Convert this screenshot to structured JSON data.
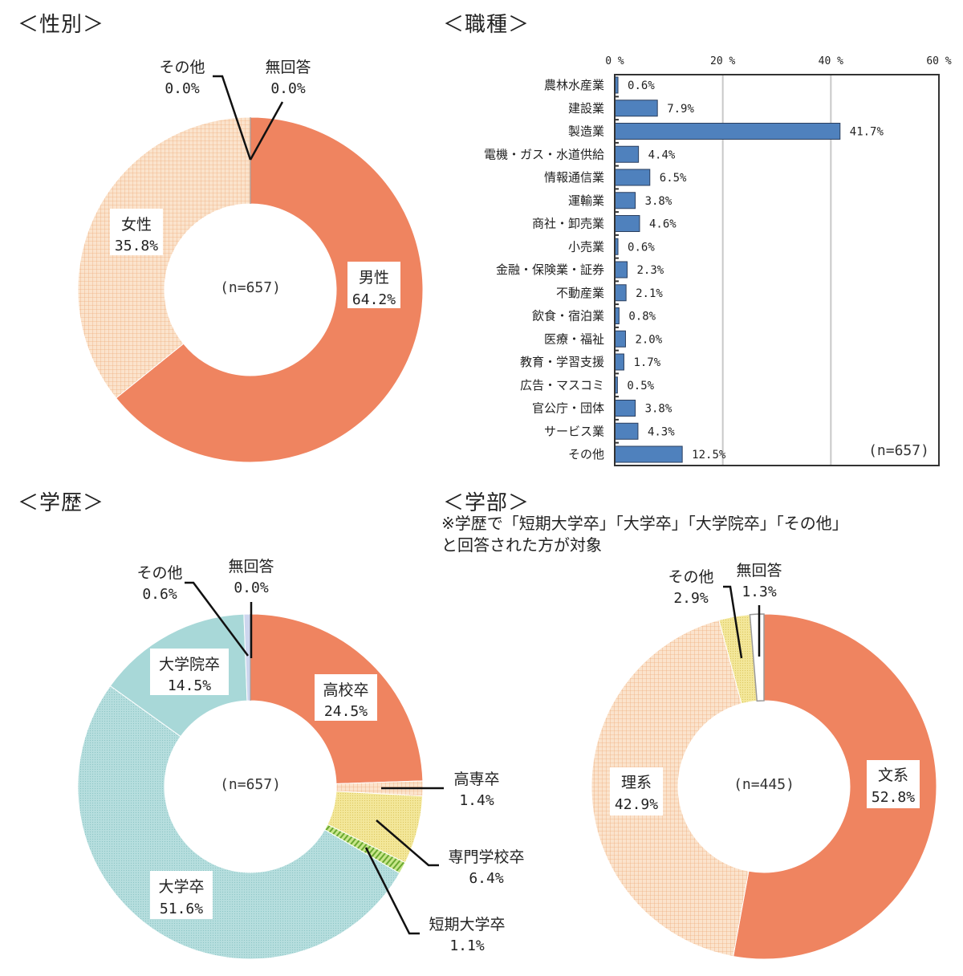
{
  "sections": {
    "gender": {
      "title": "＜性別＞"
    },
    "occupation": {
      "title": "＜職種＞"
    },
    "education": {
      "title": "＜学歴＞"
    },
    "faculty": {
      "title": "＜学部＞",
      "note_line1": "※学歴で「短期大学卒」「大学卒」「大学院卒」「その他」",
      "note_line2": "と回答された方が対象"
    }
  },
  "colors": {
    "orange": "#ef8460",
    "peach": "#f7caa0",
    "teal": "#a8d8d8",
    "yellow": "#efe08a",
    "green": "#9ccc50",
    "lavender": "#cdd6ee",
    "bar_blue": "#4f81bd",
    "grid": "#c8c8c8"
  },
  "chart_data": [
    {
      "id": "gender",
      "type": "pie",
      "title": "＜性別＞",
      "center_label": "(n=657)",
      "series": [
        {
          "name": "男性",
          "value": 64.2,
          "label": "64.2%",
          "color": "#ef8460"
        },
        {
          "name": "女性",
          "value": 35.8,
          "label": "35.8%",
          "color": "#f7caa0"
        },
        {
          "name": "その他",
          "value": 0.0,
          "label": "0.0%",
          "color": "#cdd6ee"
        },
        {
          "name": "無回答",
          "value": 0.0,
          "label": "0.0%",
          "color": "#ffffff"
        }
      ]
    },
    {
      "id": "occupation",
      "type": "bar",
      "orientation": "horizontal",
      "title": "＜職種＞",
      "annotation": "(n=657)",
      "xlim": [
        0,
        60
      ],
      "xticks": [
        "0 %",
        "20 %",
        "40 %",
        "60 %"
      ],
      "grid": true,
      "categories": [
        "農林水産業",
        "建設業",
        "製造業",
        "電機・ガス・水道供給",
        "情報通信業",
        "運輸業",
        "商社・卸売業",
        "小売業",
        "金融・保険業・証券",
        "不動産業",
        "飲食・宿泊業",
        "医療・福祉",
        "教育・学習支援",
        "広告・マスコミ",
        "官公庁・団体",
        "サービス業",
        "その他"
      ],
      "values": [
        0.6,
        7.9,
        41.7,
        4.4,
        6.5,
        3.8,
        4.6,
        0.6,
        2.3,
        2.1,
        0.8,
        2.0,
        1.7,
        0.5,
        3.8,
        4.3,
        12.5
      ],
      "labels": [
        "0.6%",
        "7.9%",
        "41.7%",
        "4.4%",
        "6.5%",
        "3.8%",
        "4.6%",
        "0.6%",
        "2.3%",
        "2.1%",
        "0.8%",
        "2.0%",
        "1.7%",
        "0.5%",
        "3.8%",
        "4.3%",
        "12.5%"
      ]
    },
    {
      "id": "education",
      "type": "pie",
      "title": "＜学歴＞",
      "center_label": "(n=657)",
      "series": [
        {
          "name": "高校卒",
          "value": 24.5,
          "label": "24.5%",
          "color": "#ef8460"
        },
        {
          "name": "高専卒",
          "value": 1.4,
          "label": "1.4%",
          "color": "#f7caa0"
        },
        {
          "name": "専門学校卒",
          "value": 6.4,
          "label": "6.4%",
          "color": "#efe08a"
        },
        {
          "name": "短期大学卒",
          "value": 1.1,
          "label": "1.1%",
          "color": "#9ccc50"
        },
        {
          "name": "大学卒",
          "value": 51.6,
          "label": "51.6%",
          "color": "#a8d8d8"
        },
        {
          "name": "大学院卒",
          "value": 14.5,
          "label": "14.5%",
          "color": "#a8d8d8"
        },
        {
          "name": "その他",
          "value": 0.6,
          "label": "0.6%",
          "color": "#cdd6ee"
        },
        {
          "name": "無回答",
          "value": 0.0,
          "label": "0.0%",
          "color": "#ffffff"
        }
      ]
    },
    {
      "id": "faculty",
      "type": "pie",
      "title": "＜学部＞",
      "center_label": "(n=445)",
      "series": [
        {
          "name": "文系",
          "value": 52.8,
          "label": "52.8%",
          "color": "#ef8460"
        },
        {
          "name": "理系",
          "value": 42.9,
          "label": "42.9%",
          "color": "#f7caa0"
        },
        {
          "name": "その他",
          "value": 2.9,
          "label": "2.9%",
          "color": "#efe08a"
        },
        {
          "name": "無回答",
          "value": 1.3,
          "label": "1.3%",
          "color": "#ffffff"
        }
      ]
    }
  ]
}
